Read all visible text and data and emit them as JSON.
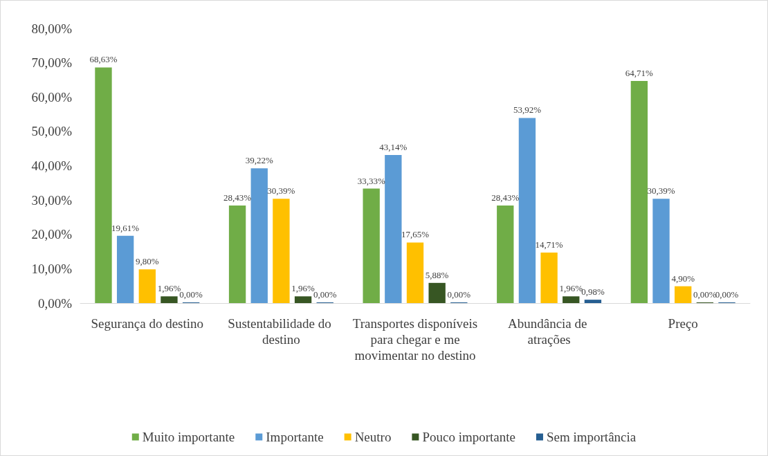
{
  "chart_data": {
    "type": "bar",
    "categories": [
      "Segurança do destino",
      "Sustentabilidade do destino",
      "Transportes disponíveis para chegar e me movimentar no destino",
      "Abundância de atrações",
      "Preço"
    ],
    "series": [
      {
        "name": "Muito importante",
        "color": "#70ad47",
        "values": [
          68.63,
          28.43,
          33.33,
          28.43,
          64.71
        ],
        "value_labels": [
          "68,63%",
          "28,43%",
          "33,33%",
          "28,43%",
          "64,71%"
        ]
      },
      {
        "name": "Importante",
        "color": "#5b9bd5",
        "values": [
          19.61,
          39.22,
          43.14,
          53.92,
          30.39
        ],
        "value_labels": [
          "19,61%",
          "39,22%",
          "43,14%",
          "53,92%",
          "30,39%"
        ]
      },
      {
        "name": "Neutro",
        "color": "#ffc000",
        "values": [
          9.8,
          30.39,
          17.65,
          14.71,
          4.9
        ],
        "value_labels": [
          "9,80%",
          "30,39%",
          "17,65%",
          "14,71%",
          "4,90%"
        ]
      },
      {
        "name": "Pouco importante",
        "color": "#375623",
        "values": [
          1.96,
          1.96,
          5.88,
          1.96,
          0
        ],
        "value_labels": [
          "1,96%",
          "1,96%",
          "5,88%",
          "1,96%",
          "0,00%"
        ]
      },
      {
        "name": "Sem importância",
        "color": "#255e91",
        "values": [
          0,
          0,
          0,
          0.98,
          0
        ],
        "value_labels": [
          "0,00%",
          "0,00%",
          "0,00%",
          "0,98%",
          "0,00%"
        ]
      }
    ],
    "ylim": [
      0,
      80
    ],
    "yticks": [
      {
        "value": 0,
        "label": "0,00%"
      },
      {
        "value": 10,
        "label": "10,00%"
      },
      {
        "value": 20,
        "label": "20,00%"
      },
      {
        "value": 30,
        "label": "30,00%"
      },
      {
        "value": 40,
        "label": "40,00%"
      },
      {
        "value": 50,
        "label": "50,00%"
      },
      {
        "value": 60,
        "label": "60,00%"
      },
      {
        "value": 70,
        "label": "70,00%"
      },
      {
        "value": 80,
        "label": "80,00%"
      }
    ],
    "grid": false,
    "legend": "bottom"
  }
}
